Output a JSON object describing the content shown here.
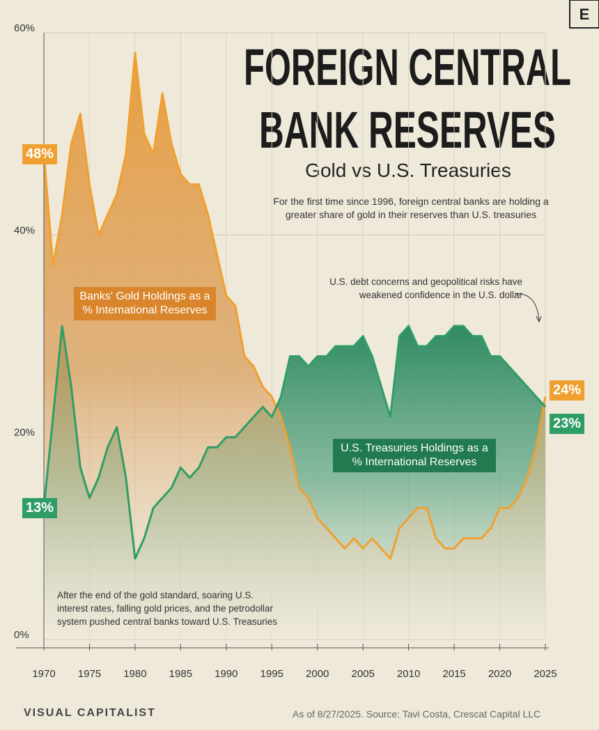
{
  "chart_data": {
    "type": "line",
    "logo": "E",
    "title": [
      "FOREIGN CENTRAL",
      "BANK RESERVES"
    ],
    "subtitle": "Gold vs U.S. Treasuries",
    "description": "For the first time since 1996, foreign central banks are holding a greater share of gold in their reserves than U.S. treasuries",
    "annotations": [
      "U.S. debt concerns and geopolitical risks have weakened confidence in the U.S. dollar",
      "After the end of the gold standard, soaring U.S. interest rates, falling gold prices, and the petrodollar system pushed central banks toward U.S. Treasuries"
    ],
    "x": [
      1970,
      1971,
      1972,
      1973,
      1974,
      1975,
      1976,
      1977,
      1978,
      1979,
      1980,
      1981,
      1982,
      1983,
      1984,
      1985,
      1986,
      1987,
      1988,
      1989,
      1990,
      1991,
      1992,
      1993,
      1994,
      1995,
      1996,
      1997,
      1998,
      1999,
      2000,
      2001,
      2002,
      2003,
      2004,
      2005,
      2006,
      2007,
      2008,
      2009,
      2010,
      2011,
      2012,
      2013,
      2014,
      2015,
      2016,
      2017,
      2018,
      2019,
      2020,
      2021,
      2022,
      2023,
      2024,
      2025
    ],
    "series": [
      {
        "name": "Banks' Gold Holdings as a % International Reserves",
        "color": "#f0a030",
        "values": [
          48,
          37,
          42,
          49,
          52,
          45,
          40,
          42,
          44,
          48,
          58,
          50,
          48,
          54,
          49,
          46,
          45,
          45,
          42,
          38,
          34,
          33,
          28,
          27,
          25,
          24,
          22,
          19,
          15,
          14,
          12,
          11,
          10,
          9,
          10,
          9,
          10,
          9,
          8,
          11,
          12,
          13,
          13,
          10,
          9,
          9,
          10,
          10,
          10,
          11,
          13,
          13,
          14,
          16,
          19,
          24
        ],
        "value_labels": [
          "48%",
          null,
          null,
          null,
          null,
          null,
          null,
          null,
          null,
          null,
          null,
          null,
          null,
          null,
          null,
          null,
          null,
          null,
          null,
          null,
          null,
          null,
          null,
          null,
          null,
          null,
          null,
          null,
          null,
          null,
          null,
          null,
          null,
          null,
          null,
          null,
          null,
          null,
          null,
          null,
          null,
          null,
          null,
          null,
          null,
          null,
          null,
          null,
          null,
          null,
          null,
          null,
          null,
          null,
          null,
          "24%"
        ]
      },
      {
        "name": "U.S. Treasuries Holdings as a % International Reserves",
        "color": "#2f9d66",
        "values": [
          13,
          22,
          31,
          25,
          17,
          14,
          16,
          19,
          21,
          16,
          8,
          10,
          13,
          14,
          15,
          17,
          16,
          17,
          19,
          19,
          20,
          20,
          21,
          22,
          23,
          22,
          24,
          28,
          28,
          27,
          28,
          28,
          29,
          29,
          29,
          30,
          28,
          25,
          22,
          30,
          31,
          29,
          29,
          30,
          30,
          31,
          31,
          30,
          30,
          28,
          28,
          27,
          26,
          25,
          24,
          23
        ],
        "value_labels": [
          "13%",
          null,
          null,
          null,
          null,
          null,
          null,
          null,
          null,
          null,
          null,
          null,
          null,
          null,
          null,
          null,
          null,
          null,
          null,
          null,
          null,
          null,
          null,
          null,
          null,
          null,
          null,
          null,
          null,
          null,
          null,
          null,
          null,
          null,
          null,
          null,
          null,
          null,
          null,
          null,
          null,
          null,
          null,
          null,
          null,
          null,
          null,
          null,
          null,
          null,
          null,
          null,
          null,
          null,
          null,
          "23%"
        ]
      }
    ],
    "xlim": [
      1970,
      2025
    ],
    "xticks": [
      1970,
      1975,
      1980,
      1985,
      1990,
      1995,
      2000,
      2005,
      2010,
      2015,
      2020,
      2025
    ],
    "ylim": [
      0,
      60
    ],
    "yticks": [
      {
        "value": 0,
        "label": "0%"
      },
      {
        "value": 20,
        "label": "20%"
      },
      {
        "value": 40,
        "label": "40%"
      },
      {
        "value": 60,
        "label": "60%"
      }
    ],
    "grid": true,
    "brand": "VISUAL CAPITALIST",
    "source": "As of 8/27/2025. Source: Tavi Costa, Crescat Capital LLC"
  }
}
